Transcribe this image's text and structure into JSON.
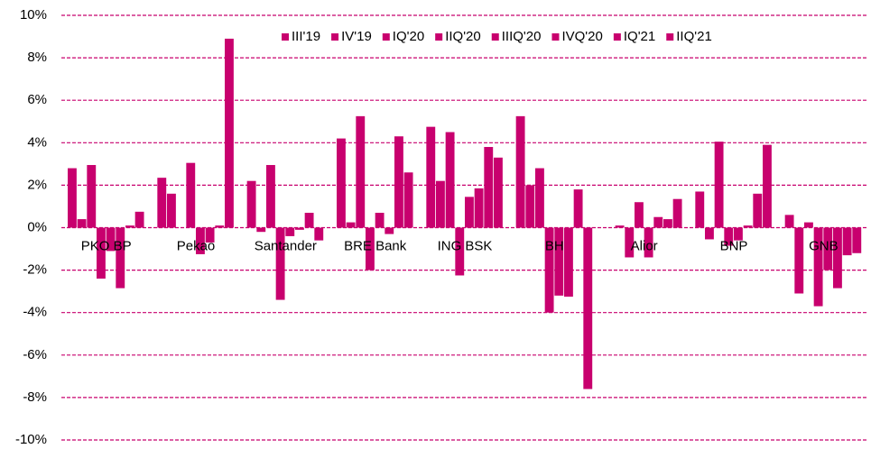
{
  "chart_data": {
    "type": "bar",
    "categories": [
      "PKO BP",
      "Pekao",
      "Santander",
      "BRE Bank",
      "ING BSK",
      "BH",
      "Alior",
      "BNP",
      "GNB"
    ],
    "series": [
      {
        "name": "III'19",
        "color": "#c8006e",
        "values": [
          2.8,
          2.35,
          2.2,
          4.2,
          4.75,
          5.25,
          0,
          1.7,
          0.6
        ]
      },
      {
        "name": "IV'19",
        "color": "#c8006e",
        "values": [
          0.4,
          1.6,
          -0.2,
          0.25,
          2.2,
          2.0,
          0.1,
          -0.55,
          -3.1
        ]
      },
      {
        "name": "IQ'20",
        "color": "#c8006e",
        "values": [
          2.95,
          0,
          2.95,
          5.25,
          4.5,
          2.8,
          -1.4,
          4.05,
          0.25
        ]
      },
      {
        "name": "IIQ'20",
        "color": "#c8006e",
        "values": [
          -2.4,
          3.05,
          -3.4,
          -2.0,
          -2.25,
          -4.0,
          1.2,
          -0.85,
          -3.7
        ]
      },
      {
        "name": "IIIQ'20",
        "color": "#c8006e",
        "values": [
          -1.1,
          -1.25,
          -0.4,
          0.7,
          1.45,
          -3.2,
          -1.4,
          -0.6,
          -2.0
        ]
      },
      {
        "name": "IVQ'20",
        "color": "#c8006e",
        "values": [
          -2.85,
          -0.7,
          -0.1,
          -0.3,
          1.85,
          -3.25,
          0.5,
          0.1,
          -2.85
        ]
      },
      {
        "name": "IQ'21",
        "color": "#c8006e",
        "values": [
          0.1,
          0.1,
          0.7,
          4.3,
          3.8,
          1.8,
          0.4,
          1.6,
          -1.3
        ]
      },
      {
        "name": "IIQ'21",
        "color": "#c8006e",
        "values": [
          0.75,
          8.9,
          -0.6,
          2.6,
          3.3,
          -7.6,
          1.35,
          3.9,
          -1.2
        ]
      }
    ],
    "ylim": [
      -10,
      10
    ],
    "yticks": [
      {
        "value": -10,
        "label": "-10%"
      },
      {
        "value": -8,
        "label": "-8%"
      },
      {
        "value": -6,
        "label": "-6%"
      },
      {
        "value": -4,
        "label": "-4%"
      },
      {
        "value": -2,
        "label": "-2%"
      },
      {
        "value": 0,
        "label": "0%"
      },
      {
        "value": 2,
        "label": "2%"
      },
      {
        "value": 4,
        "label": "4%"
      },
      {
        "value": 6,
        "label": "6%"
      },
      {
        "value": 8,
        "label": "8%"
      },
      {
        "value": 10,
        "label": "10%"
      }
    ],
    "grid": true,
    "grid_color": "#c8006e",
    "legend": "top"
  }
}
